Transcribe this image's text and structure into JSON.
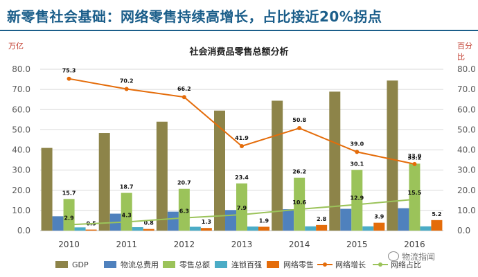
{
  "headline": "新零售社会基础：网络零售持续高增长，占比接近20%拐点",
  "left_unit": "万亿",
  "right_unit": "百分比",
  "watermark": "物流指闻",
  "colors": {
    "headline": "#1b5e8a",
    "gdp": "#8d8449",
    "logistics": "#4f81bd",
    "retail_total": "#9bc35a",
    "chain_top100": "#4bacc6",
    "online_retail": "#e46c0a",
    "online_growth": "#e46c0a",
    "online_share": "#9bc35a"
  },
  "chart_data": {
    "type": "bar",
    "title": "社会消费品零售总额分析",
    "categories": [
      "2010",
      "2011",
      "2012",
      "2013",
      "2014",
      "2015",
      "2016"
    ],
    "y_left": {
      "label": "万亿",
      "range": [
        0,
        80
      ],
      "ticks": [
        "0.0",
        "10.0",
        "20.0",
        "30.0",
        "40.0",
        "50.0",
        "60.0",
        "70.0",
        "80.0"
      ]
    },
    "y_right": {
      "label": "百分比",
      "range": [
        0,
        80
      ],
      "ticks": [
        "0.0",
        "10.0",
        "20.0",
        "30.0",
        "40.0",
        "50.0",
        "60.0",
        "70.0",
        "80.0"
      ]
    },
    "legend_position": "bottom",
    "bar_series": [
      {
        "key": "gdp",
        "name": "GDP",
        "values": [
          41,
          48.4,
          54,
          59.5,
          64.4,
          68.9,
          74.4
        ],
        "labels": [
          "",
          "",
          "",
          "",
          "",
          "",
          ""
        ]
      },
      {
        "key": "logistics",
        "name": "物流总费用",
        "values": [
          7.1,
          8.4,
          9.4,
          10.2,
          10.6,
          10.8,
          11.1
        ],
        "labels": [
          "",
          "",
          "",
          "",
          "",
          "",
          ""
        ]
      },
      {
        "key": "retail_total",
        "name": "零售总额",
        "values": [
          15.7,
          18.7,
          20.7,
          23.4,
          26.2,
          30.1,
          33.2
        ],
        "labels": [
          "15.7",
          "18.7",
          "20.7",
          "23.4",
          "26.2",
          "30.1",
          "33.2"
        ]
      },
      {
        "key": "chain_top100",
        "name": "连锁百强",
        "values": [
          1.6,
          1.7,
          1.9,
          2.0,
          2.1,
          2.1,
          2.1
        ],
        "labels": [
          "",
          "",
          "",
          "",
          "",
          "",
          ""
        ]
      },
      {
        "key": "online_retail",
        "name": "网络零售",
        "values": [
          0.5,
          0.8,
          1.3,
          1.9,
          2.8,
          3.9,
          5.2
        ],
        "labels": [
          "0.5",
          "0.8",
          "1.3",
          "1.9",
          "2.8",
          "3.9",
          "5.2"
        ]
      }
    ],
    "line_series": [
      {
        "key": "online_growth",
        "name": "网络增长",
        "values": [
          75.3,
          70.2,
          66.2,
          41.9,
          50.8,
          39.0,
          33.0
        ],
        "labels": [
          "75.3",
          "70.2",
          "66.2",
          "41.9",
          "50.8",
          "39.0",
          "33.0"
        ]
      },
      {
        "key": "online_share",
        "name": "网络占比",
        "values": [
          2.9,
          4.3,
          6.3,
          7.9,
          10.6,
          12.9,
          15.5
        ],
        "labels": [
          "2.9",
          "4.3",
          "6.3",
          "7.9",
          "10.6",
          "12.9",
          "15.5"
        ]
      }
    ]
  }
}
